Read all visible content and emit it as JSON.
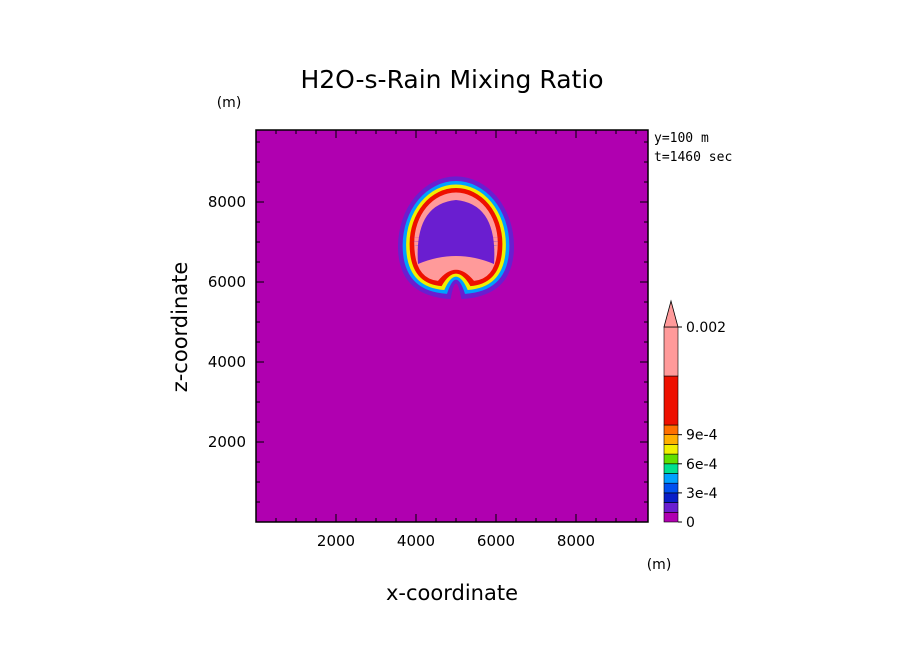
{
  "chart_data": {
    "type": "heatmap",
    "title": "H2O-s-Rain Mixing Ratio",
    "xlabel": "x-coordinate",
    "ylabel": "z-coordinate",
    "x_unit": "(m)",
    "y_unit": "(m)",
    "info": [
      "y=100 m",
      "t=1460 sec"
    ],
    "xlim": [
      0,
      9800
    ],
    "ylim": [
      0,
      9800
    ],
    "xticks": [
      2000,
      4000,
      6000,
      8000
    ],
    "yticks": [
      2000,
      4000,
      6000,
      8000
    ],
    "grid": false,
    "legend": "right",
    "colorbar": {
      "levels": [
        0,
        0.0001,
        0.0002,
        0.0003,
        0.0004,
        0.0005,
        0.0006,
        0.0007,
        0.0008,
        0.0009,
        0.001,
        0.0015,
        0.002
      ],
      "labels": [
        {
          "value": 0,
          "text": "0"
        },
        {
          "value": 0.0003,
          "text": "3e-4"
        },
        {
          "value": 0.0006,
          "text": "6e-4"
        },
        {
          "value": 0.0009,
          "text": "9e-4"
        },
        {
          "value": 0.002,
          "text": "0.002"
        }
      ],
      "colors": [
        "#b000b0",
        "#6a1ed0",
        "#0a1ec8",
        "#0050f0",
        "#00a0ff",
        "#00e090",
        "#60e000",
        "#f0f000",
        "#ffb000",
        "#ff7000",
        "#ee1000",
        "#ff9a9a"
      ],
      "extend": "max"
    },
    "field": {
      "description": "rain mixing ratio (kg/kg) in x-z plane",
      "background": 0,
      "feature": "mushroom-shaped rain shell centred near x=5000 m, z=7200 m, outer edge ~8900 m, lower lobes near z=5800 m",
      "ring_profile": [
        {
          "r_frac": 0.0,
          "value": 0
        },
        {
          "r_frac": 0.05,
          "value": 0.00015
        },
        {
          "r_frac": 0.12,
          "value": 0.00035
        },
        {
          "r_frac": 0.18,
          "value": 0.0005
        },
        {
          "r_frac": 0.24,
          "value": 0.0008
        },
        {
          "r_frac": 0.3,
          "value": 0.0012
        },
        {
          "r_frac": 0.38,
          "value": 0.0018
        },
        {
          "r_frac": 0.62,
          "value": 0.0018
        },
        {
          "r_frac": 0.72,
          "value": 0.0012
        },
        {
          "r_frac": 0.8,
          "value": 0.0007
        },
        {
          "r_frac": 0.86,
          "value": 0.0004
        },
        {
          "r_frac": 0.92,
          "value": 0.00015
        },
        {
          "r_frac": 1.0,
          "value": 0
        }
      ]
    }
  }
}
